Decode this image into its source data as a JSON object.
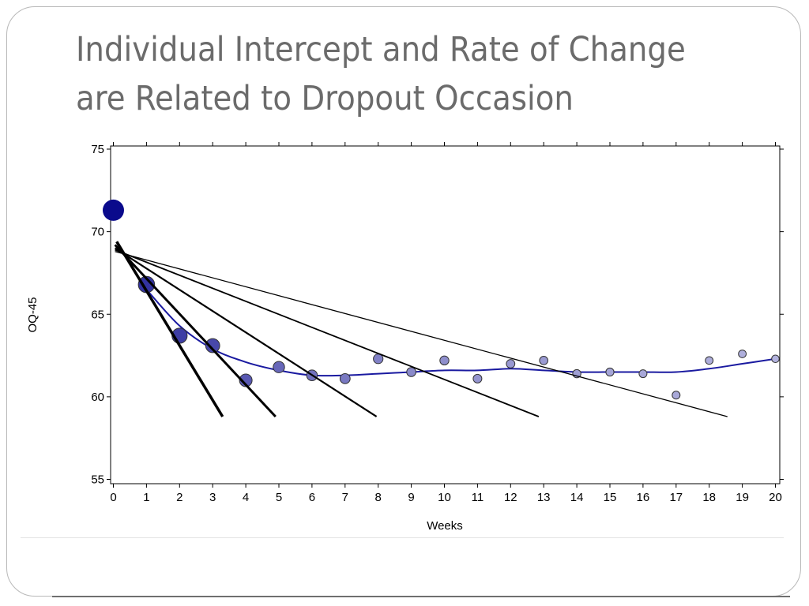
{
  "slide": {
    "title_lines": [
      "Individual Intercept and Rate of Change",
      "are Related to Dropout Occasion"
    ]
  },
  "chart_data": {
    "type": "scatter",
    "xlabel": "Weeks",
    "ylabel": "OQ-45",
    "xlim": [
      0,
      20
    ],
    "ylim": [
      55,
      75
    ],
    "x_ticks": [
      0,
      1,
      2,
      3,
      4,
      5,
      6,
      7,
      8,
      9,
      10,
      11,
      12,
      13,
      14,
      15,
      16,
      17,
      18,
      19,
      20
    ],
    "y_ticks": [
      55,
      60,
      65,
      70,
      75
    ],
    "grid": false,
    "legend": "none",
    "colors": {
      "dark": "#0a0a8c",
      "light": "#d8d8f0",
      "smooth_line": "#1a1aa0",
      "trend_lines": "#000000"
    },
    "series": [
      {
        "kind": "observed_means",
        "points": [
          {
            "x": 0,
            "y": 71.3,
            "weight": 1.0
          },
          {
            "x": 1,
            "y": 66.8,
            "weight": 0.8
          },
          {
            "x": 2,
            "y": 63.7,
            "weight": 0.75
          },
          {
            "x": 3,
            "y": 63.1,
            "weight": 0.7
          },
          {
            "x": 4,
            "y": 61.0,
            "weight": 0.62
          },
          {
            "x": 5,
            "y": 61.8,
            "weight": 0.55
          },
          {
            "x": 6,
            "y": 61.3,
            "weight": 0.5
          },
          {
            "x": 7,
            "y": 61.1,
            "weight": 0.46
          },
          {
            "x": 8,
            "y": 62.3,
            "weight": 0.42
          },
          {
            "x": 9,
            "y": 61.5,
            "weight": 0.38
          },
          {
            "x": 10,
            "y": 62.2,
            "weight": 0.36
          },
          {
            "x": 11,
            "y": 61.1,
            "weight": 0.33
          },
          {
            "x": 12,
            "y": 62.0,
            "weight": 0.31
          },
          {
            "x": 13,
            "y": 62.2,
            "weight": 0.3
          },
          {
            "x": 14,
            "y": 61.4,
            "weight": 0.27
          },
          {
            "x": 15,
            "y": 61.5,
            "weight": 0.25
          },
          {
            "x": 16,
            "y": 61.4,
            "weight": 0.24
          },
          {
            "x": 17,
            "y": 60.1,
            "weight": 0.23
          },
          {
            "x": 18,
            "y": 62.2,
            "weight": 0.21
          },
          {
            "x": 19,
            "y": 62.6,
            "weight": 0.2
          },
          {
            "x": 20,
            "y": 62.3,
            "weight": 0.18
          }
        ]
      },
      {
        "kind": "smoothed_curve",
        "points": [
          [
            1,
            66.5
          ],
          [
            2,
            64.3
          ],
          [
            3,
            62.9
          ],
          [
            4,
            62.1
          ],
          [
            5,
            61.6
          ],
          [
            6,
            61.3
          ],
          [
            7,
            61.3
          ],
          [
            8,
            61.4
          ],
          [
            9,
            61.5
          ],
          [
            10,
            61.6
          ],
          [
            11,
            61.6
          ],
          [
            12,
            61.7
          ],
          [
            13,
            61.6
          ],
          [
            14,
            61.5
          ],
          [
            15,
            61.5
          ],
          [
            16,
            61.5
          ],
          [
            17,
            61.5
          ],
          [
            18,
            61.7
          ],
          [
            19,
            62.0
          ],
          [
            20,
            62.3
          ]
        ]
      },
      {
        "kind": "dropout_trend_lines",
        "lines": [
          {
            "x0": 0.1,
            "y0": 69.4,
            "x1": 3.3,
            "y1": 58.8,
            "width": 3.5
          },
          {
            "x0": 0.05,
            "y0": 69.2,
            "x1": 4.9,
            "y1": 58.8,
            "width": 3.0
          },
          {
            "x0": 0.05,
            "y0": 69.0,
            "x1": 7.95,
            "y1": 58.8,
            "width": 2.2
          },
          {
            "x0": 0.05,
            "y0": 68.9,
            "x1": 12.85,
            "y1": 58.8,
            "width": 1.8
          },
          {
            "x0": 0.05,
            "y0": 68.8,
            "x1": 18.55,
            "y1": 58.8,
            "width": 1.3
          }
        ]
      }
    ]
  }
}
